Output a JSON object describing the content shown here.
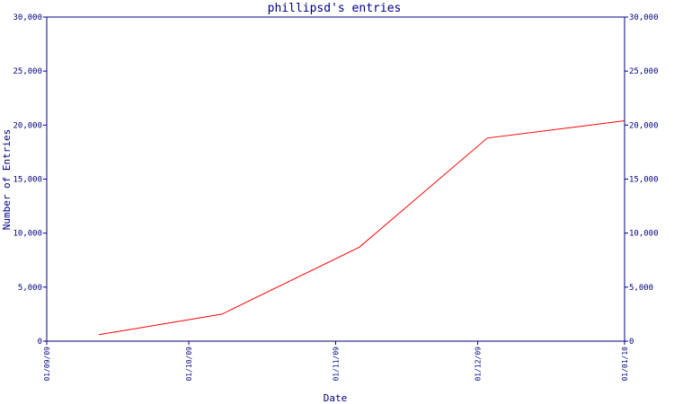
{
  "chart_data": {
    "type": "line",
    "title": "phillipsd's entries",
    "xlabel": "Date",
    "ylabel": "Number of Entries",
    "x_tick_labels": [
      "01/09/09",
      "01/10/09",
      "01/11/09",
      "01/12/09",
      "01/01/10"
    ],
    "x_tick_dates": [
      "2009-09-01",
      "2009-10-01",
      "2009-11-01",
      "2009-12-01",
      "2010-01-01"
    ],
    "y_tick_labels": [
      "0",
      "5,000",
      "10,000",
      "15,000",
      "20,000",
      "25,000",
      "30,000"
    ],
    "xlim": [
      "2009-09-01",
      "2010-01-01"
    ],
    "ylim": [
      0,
      30000
    ],
    "grid": false,
    "series": [
      {
        "color": "#ff0000",
        "points": [
          {
            "x": "2009-09-12",
            "y": 600
          },
          {
            "x": "2009-10-08",
            "y": 2500
          },
          {
            "x": "2009-11-06",
            "y": 8700
          },
          {
            "x": "2009-12-03",
            "y": 18800
          },
          {
            "x": "2010-01-01",
            "y": 20400
          }
        ]
      }
    ],
    "colors": {
      "axis": "#000080",
      "text": "#000080",
      "line": "#ff0000"
    }
  }
}
